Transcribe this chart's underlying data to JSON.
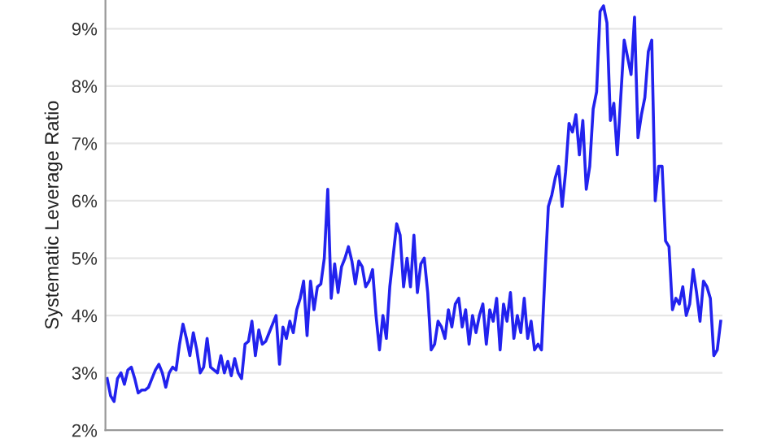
{
  "chart_data": {
    "type": "line",
    "ylabel": "Systematic Leverage Ratio",
    "ylim": [
      2,
      9.5
    ],
    "yticks": [
      {
        "value": 2,
        "label": "2%"
      },
      {
        "value": 3,
        "label": "3%"
      },
      {
        "value": 4,
        "label": "4%"
      },
      {
        "value": 5,
        "label": "5%"
      },
      {
        "value": 6,
        "label": "6%"
      },
      {
        "value": 7,
        "label": "7%"
      },
      {
        "value": 8,
        "label": "8%"
      },
      {
        "value": 9,
        "label": "9%"
      }
    ],
    "grid": "y",
    "tick_labels": "y",
    "marker": "none",
    "line_style": "solid",
    "series": [
      {
        "color": "#2222ee",
        "values": [
          2.9,
          2.6,
          2.5,
          2.9,
          3.0,
          2.8,
          3.05,
          3.1,
          2.9,
          2.65,
          2.7,
          2.7,
          2.75,
          2.9,
          3.05,
          3.15,
          3.0,
          2.75,
          3.0,
          3.1,
          3.05,
          3.5,
          3.85,
          3.6,
          3.3,
          3.7,
          3.4,
          3.0,
          3.1,
          3.6,
          3.1,
          3.05,
          3.0,
          3.3,
          3.0,
          3.2,
          2.95,
          3.25,
          3.0,
          2.9,
          3.5,
          3.55,
          3.9,
          3.3,
          3.75,
          3.5,
          3.55,
          3.7,
          3.85,
          4.0,
          3.15,
          3.8,
          3.6,
          3.9,
          3.7,
          4.1,
          4.3,
          4.6,
          3.65,
          4.6,
          4.1,
          4.5,
          4.55,
          5.0,
          6.2,
          4.3,
          4.9,
          4.4,
          4.85,
          5.0,
          5.2,
          4.95,
          4.55,
          4.95,
          4.85,
          4.5,
          4.6,
          4.8,
          4.0,
          3.4,
          4.0,
          3.6,
          4.5,
          5.05,
          5.6,
          5.4,
          4.5,
          5.0,
          4.5,
          5.4,
          4.4,
          4.9,
          5.0,
          4.4,
          3.4,
          3.5,
          3.9,
          3.8,
          3.6,
          4.1,
          3.8,
          4.2,
          4.3,
          3.8,
          4.1,
          3.5,
          4.0,
          3.7,
          4.0,
          4.2,
          3.5,
          4.1,
          3.9,
          4.3,
          3.4,
          4.2,
          3.9,
          4.4,
          3.6,
          4.0,
          3.7,
          4.3,
          3.6,
          3.9,
          3.4,
          3.5,
          3.4,
          4.7,
          5.9,
          6.1,
          6.4,
          6.6,
          5.9,
          6.5,
          7.35,
          7.2,
          7.5,
          6.8,
          7.4,
          6.2,
          6.6,
          7.6,
          7.9,
          9.3,
          9.4,
          9.1,
          7.4,
          7.7,
          6.8,
          7.8,
          8.8,
          8.5,
          8.2,
          9.2,
          7.1,
          7.5,
          7.8,
          8.6,
          8.8,
          6.0,
          6.6,
          6.6,
          5.3,
          5.2,
          4.1,
          4.3,
          4.2,
          4.5,
          4.0,
          4.2,
          4.8,
          4.4,
          3.9,
          4.6,
          4.5,
          4.3,
          3.3,
          3.4,
          3.9
        ]
      }
    ]
  }
}
